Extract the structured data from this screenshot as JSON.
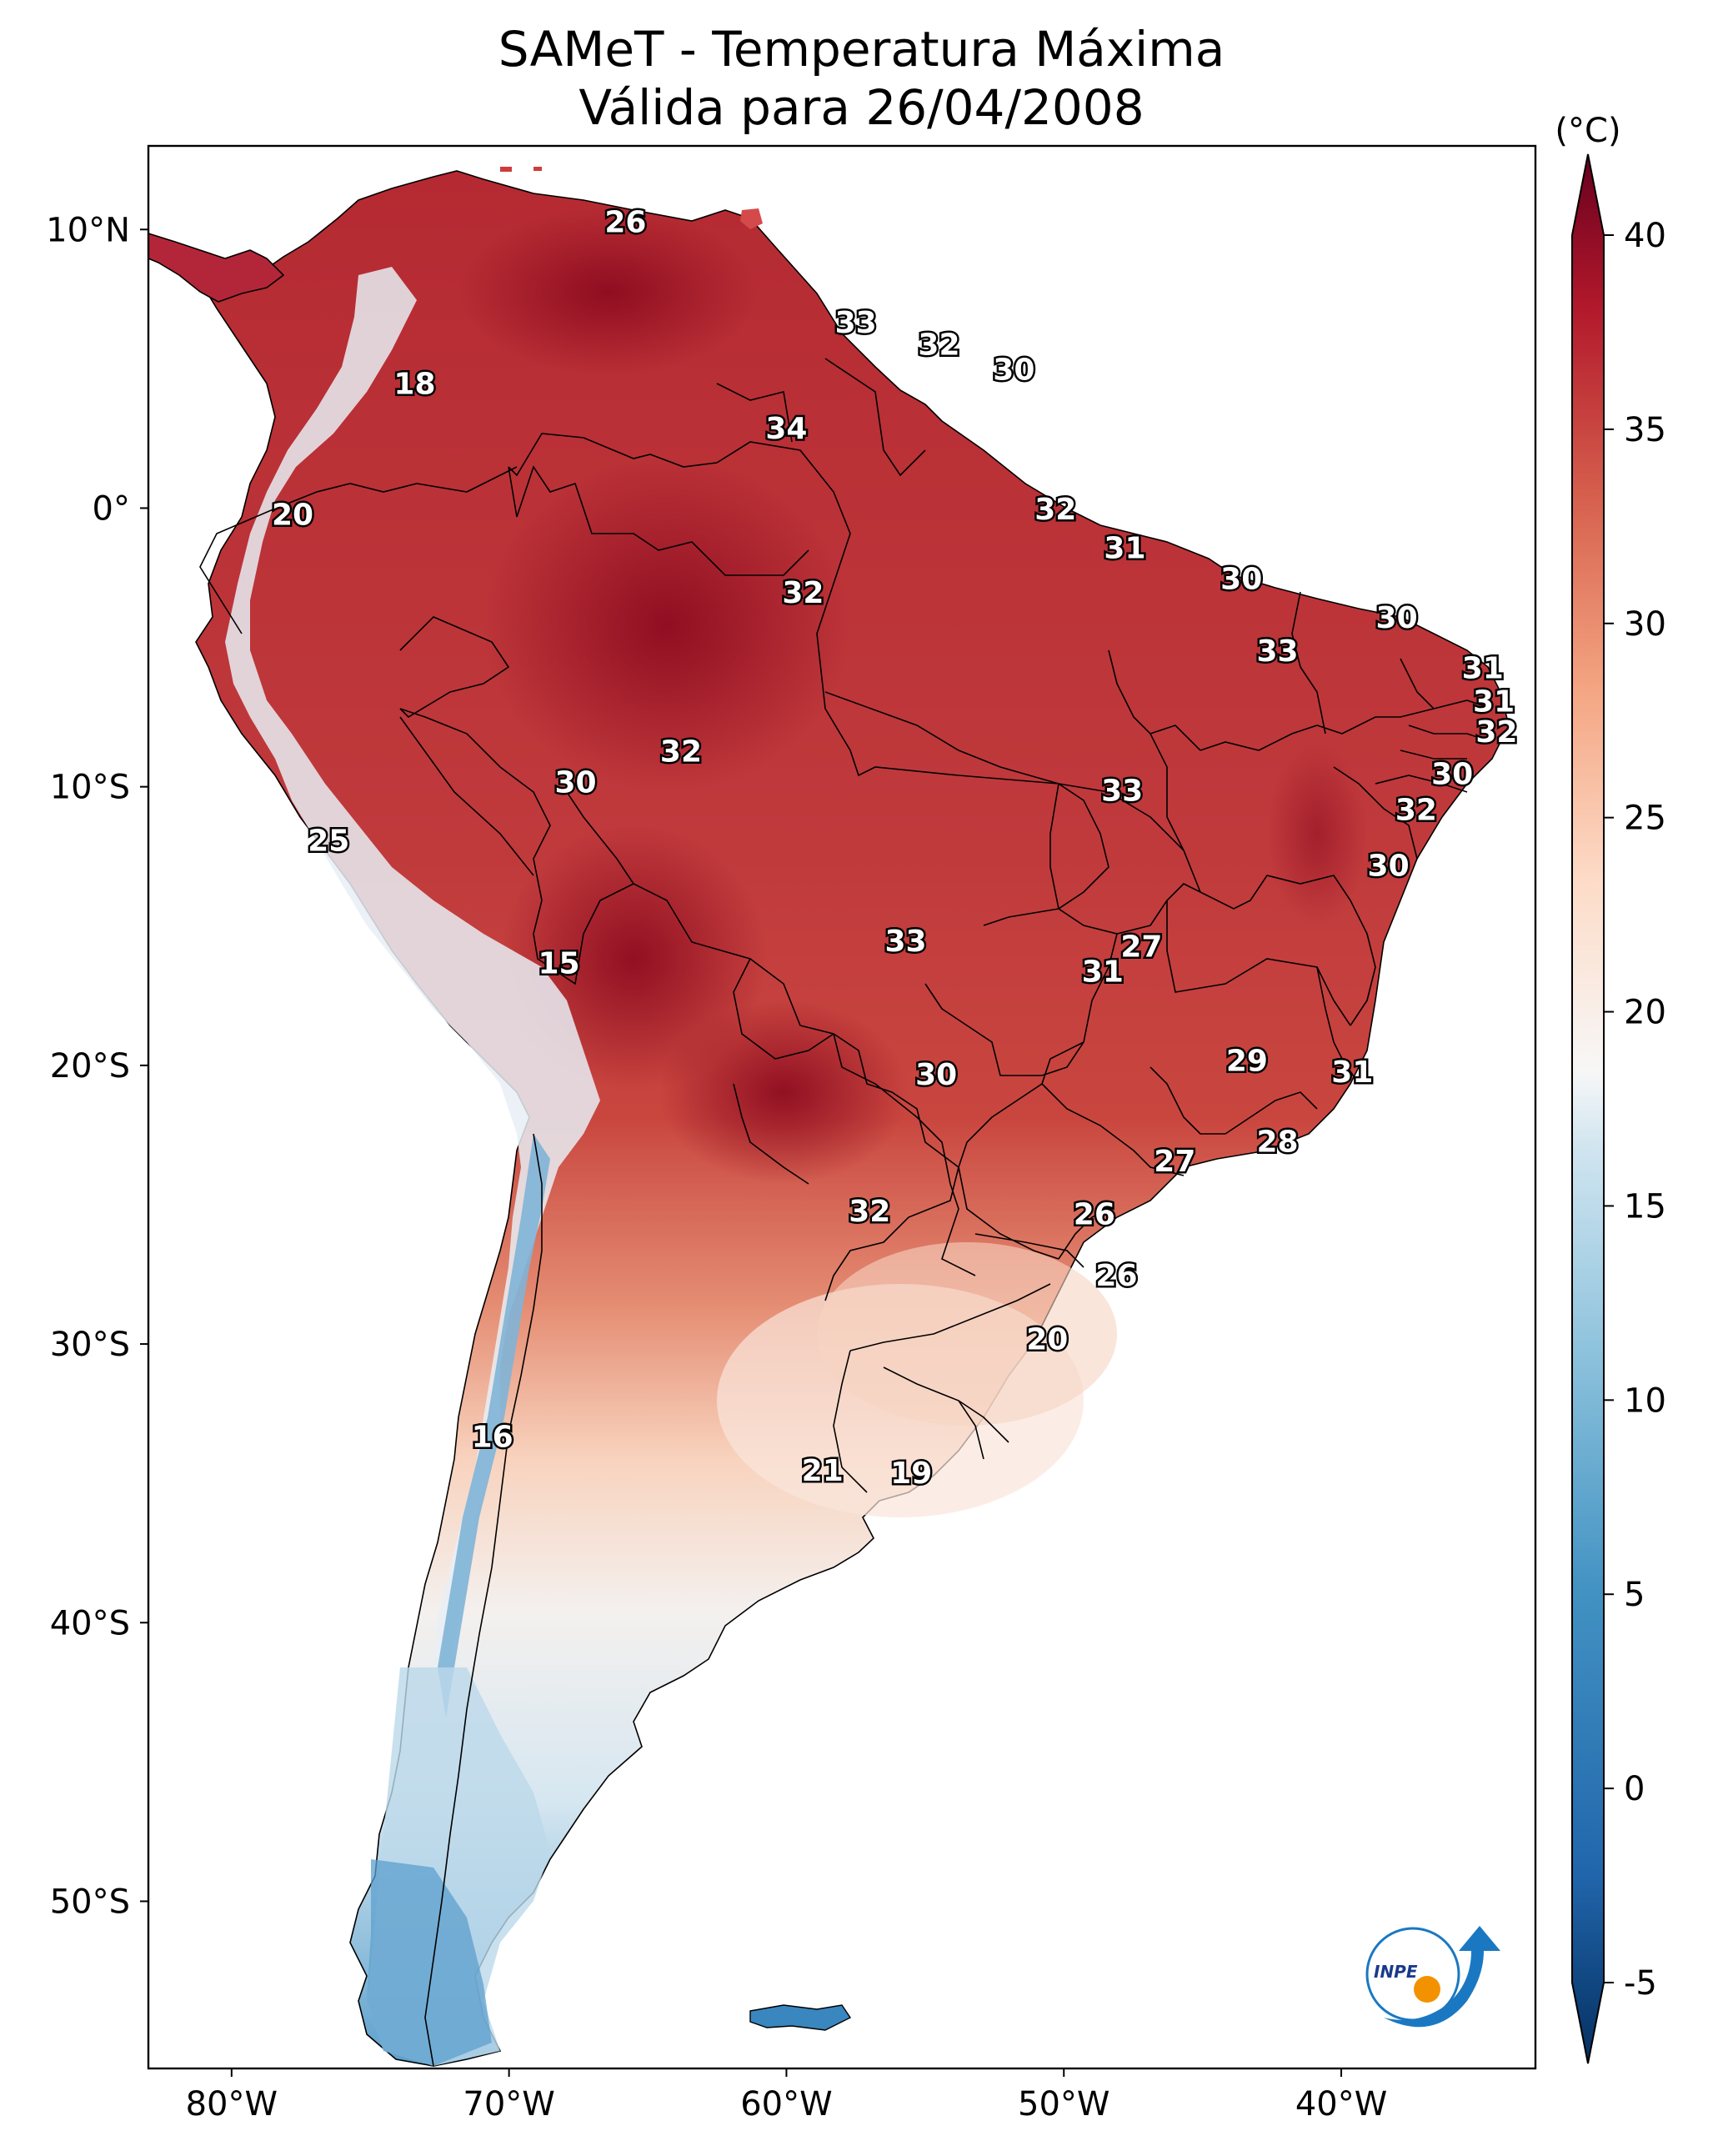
{
  "title": {
    "line1": "SAMeT - Temperatura Máxima",
    "line2": "Válida para 26/04/2008"
  },
  "map": {
    "lon_range": [
      -83,
      -33
    ],
    "lat_range": [
      -56,
      13
    ],
    "lon_ticks": [
      {
        "value": -80,
        "label": "80°W"
      },
      {
        "value": -70,
        "label": "70°W"
      },
      {
        "value": -60,
        "label": "60°W"
      },
      {
        "value": -50,
        "label": "50°W"
      },
      {
        "value": -40,
        "label": "40°W"
      }
    ],
    "lat_ticks": [
      {
        "value": 10,
        "label": "10°N"
      },
      {
        "value": 0,
        "label": "0°"
      },
      {
        "value": -10,
        "label": "10°S"
      },
      {
        "value": -20,
        "label": "20°S"
      },
      {
        "value": -30,
        "label": "30°S"
      },
      {
        "value": -40,
        "label": "40°S"
      },
      {
        "value": -50,
        "label": "50°S"
      }
    ],
    "city_labels": [
      {
        "text": "26",
        "lon": -65.8,
        "lat": 10.2
      },
      {
        "text": "18",
        "lon": -73.4,
        "lat": 4.4
      },
      {
        "text": "33",
        "lon": -57.5,
        "lat": 6.6
      },
      {
        "text": "32",
        "lon": -54.5,
        "lat": 5.8
      },
      {
        "text": "30",
        "lon": -51.8,
        "lat": 4.9
      },
      {
        "text": "34",
        "lon": -60.0,
        "lat": 2.8
      },
      {
        "text": "20",
        "lon": -77.8,
        "lat": -0.3
      },
      {
        "text": "32",
        "lon": -50.3,
        "lat": -0.1
      },
      {
        "text": "31",
        "lon": -47.8,
        "lat": -1.5
      },
      {
        "text": "30",
        "lon": -43.6,
        "lat": -2.6
      },
      {
        "text": "30",
        "lon": -38.0,
        "lat": -4.0
      },
      {
        "text": "32",
        "lon": -59.4,
        "lat": -3.1
      },
      {
        "text": "33",
        "lon": -42.3,
        "lat": -5.2
      },
      {
        "text": "31",
        "lon": -34.9,
        "lat": -5.8
      },
      {
        "text": "31",
        "lon": -34.5,
        "lat": -7.0
      },
      {
        "text": "32",
        "lon": -34.4,
        "lat": -8.1
      },
      {
        "text": "32",
        "lon": -63.8,
        "lat": -8.8
      },
      {
        "text": "30",
        "lon": -36.0,
        "lat": -9.6
      },
      {
        "text": "30",
        "lon": -67.6,
        "lat": -9.9
      },
      {
        "text": "33",
        "lon": -47.9,
        "lat": -10.2
      },
      {
        "text": "32",
        "lon": -37.3,
        "lat": -10.9
      },
      {
        "text": "25",
        "lon": -76.5,
        "lat": -12.0
      },
      {
        "text": "30",
        "lon": -38.3,
        "lat": -12.9
      },
      {
        "text": "27",
        "lon": -47.2,
        "lat": -15.8
      },
      {
        "text": "33",
        "lon": -55.7,
        "lat": -15.6
      },
      {
        "text": "15",
        "lon": -68.2,
        "lat": -16.4
      },
      {
        "text": "31",
        "lon": -48.6,
        "lat": -16.7
      },
      {
        "text": "29",
        "lon": -43.4,
        "lat": -19.9
      },
      {
        "text": "31",
        "lon": -39.6,
        "lat": -20.3
      },
      {
        "text": "30",
        "lon": -54.6,
        "lat": -20.4
      },
      {
        "text": "28",
        "lon": -42.3,
        "lat": -22.8
      },
      {
        "text": "27",
        "lon": -46.0,
        "lat": -23.5
      },
      {
        "text": "32",
        "lon": -57.0,
        "lat": -25.3
      },
      {
        "text": "26",
        "lon": -48.9,
        "lat": -25.4
      },
      {
        "text": "26",
        "lon": -48.1,
        "lat": -27.6
      },
      {
        "text": "20",
        "lon": -50.6,
        "lat": -29.9
      },
      {
        "text": "16",
        "lon": -70.6,
        "lat": -33.4
      },
      {
        "text": "21",
        "lon": -58.7,
        "lat": -34.6
      },
      {
        "text": "19",
        "lon": -55.5,
        "lat": -34.7
      }
    ]
  },
  "colorbar": {
    "unit": "(°C)",
    "ticks": [
      {
        "value": 40,
        "label": "40"
      },
      {
        "value": 35,
        "label": "35"
      },
      {
        "value": 30,
        "label": "30"
      },
      {
        "value": 25,
        "label": "25"
      },
      {
        "value": 20,
        "label": "20"
      },
      {
        "value": 15,
        "label": "15"
      },
      {
        "value": 10,
        "label": "10"
      },
      {
        "value": 5,
        "label": "5"
      },
      {
        "value": 0,
        "label": "0"
      },
      {
        "value": -5,
        "label": "-5"
      }
    ],
    "colors": {
      "hot": "#67001f",
      "warm": "#d6604d",
      "mild": "#fddbc7",
      "neutral": "#f7f7f7",
      "cool": "#d1e5f0",
      "cold": "#4393c3",
      "frigid": "#053061"
    }
  },
  "logo": {
    "text": "INPE",
    "colors": {
      "blue": "#1a78c2",
      "orange": "#f39200"
    }
  }
}
